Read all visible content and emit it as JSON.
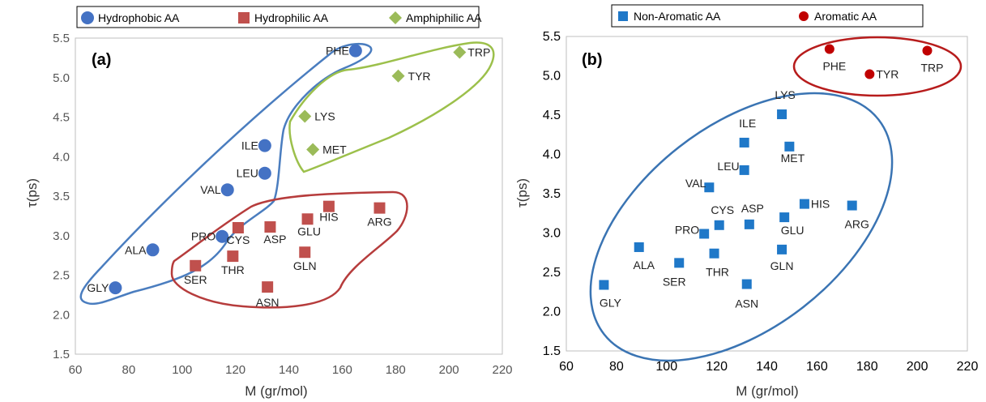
{
  "chart_data": [
    {
      "panel_label": "(a)",
      "type": "scatter",
      "xlabel": "M (gr/mol)",
      "ylabel": "τ(ps)",
      "xlim": [
        60,
        220
      ],
      "ylim": [
        1.5,
        5.5
      ],
      "xticks": [
        "60",
        "80",
        "100",
        "120",
        "140",
        "160",
        "180",
        "200",
        "220"
      ],
      "yticks": [
        "1.5",
        "2.0",
        "2.5",
        "3.0",
        "3.5",
        "4.0",
        "4.5",
        "5.0",
        "5.5"
      ],
      "grid": false,
      "legend_position": "top",
      "series": [
        {
          "name": "Hydrophobic AA",
          "marker": "circle",
          "color": "#4472c4",
          "points": [
            {
              "label": "GLY",
              "x": 75,
              "y": 2.34
            },
            {
              "label": "ALA",
              "x": 89,
              "y": 2.82
            },
            {
              "label": "PRO",
              "x": 115,
              "y": 2.99
            },
            {
              "label": "VAL",
              "x": 117,
              "y": 3.58
            },
            {
              "label": "LEU",
              "x": 131,
              "y": 3.79
            },
            {
              "label": "ILE",
              "x": 131,
              "y": 4.14
            },
            {
              "label": "PHE",
              "x": 165,
              "y": 5.34
            }
          ]
        },
        {
          "name": "Hydrophilic AA",
          "marker": "square",
          "color": "#c0504d",
          "points": [
            {
              "label": "SER",
              "x": 105,
              "y": 2.62
            },
            {
              "label": "THR",
              "x": 119,
              "y": 2.74
            },
            {
              "label": "CYS",
              "x": 121,
              "y": 3.1
            },
            {
              "label": "ASP",
              "x": 133,
              "y": 3.11
            },
            {
              "label": "ASN",
              "x": 132,
              "y": 2.35
            },
            {
              "label": "GLN",
              "x": 146,
              "y": 2.79
            },
            {
              "label": "GLU",
              "x": 147,
              "y": 3.21
            },
            {
              "label": "HIS",
              "x": 155,
              "y": 3.37
            },
            {
              "label": "ARG",
              "x": 174,
              "y": 3.35
            }
          ]
        },
        {
          "name": "Amphiphilic AA",
          "marker": "diamond",
          "color": "#9bbb59",
          "points": [
            {
              "label": "LYS",
              "x": 146,
              "y": 4.51
            },
            {
              "label": "MET",
              "x": 149,
              "y": 4.09
            },
            {
              "label": "TYR",
              "x": 181,
              "y": 5.02
            },
            {
              "label": "TRP",
              "x": 204,
              "y": 5.32
            }
          ]
        }
      ]
    },
    {
      "panel_label": "(b)",
      "type": "scatter",
      "xlabel": "M (gr/mol)",
      "ylabel": "τ(ps)",
      "xlim": [
        60,
        220
      ],
      "ylim": [
        1.5,
        5.5
      ],
      "xticks": [
        "60",
        "80",
        "100",
        "120",
        "140",
        "160",
        "180",
        "200",
        "220"
      ],
      "yticks": [
        "1.5",
        "2.0",
        "2.5",
        "3.0",
        "3.5",
        "4.0",
        "4.5",
        "5.0",
        "5.5"
      ],
      "grid": false,
      "legend_position": "top",
      "series": [
        {
          "name": "Non-Aromatic AA",
          "marker": "square",
          "color": "#1f78c8",
          "points": [
            {
              "label": "GLY",
              "x": 75,
              "y": 2.34
            },
            {
              "label": "ALA",
              "x": 89,
              "y": 2.82
            },
            {
              "label": "SER",
              "x": 105,
              "y": 2.62
            },
            {
              "label": "PRO",
              "x": 115,
              "y": 2.99
            },
            {
              "label": "VAL",
              "x": 117,
              "y": 3.58
            },
            {
              "label": "THR",
              "x": 119,
              "y": 2.74
            },
            {
              "label": "CYS",
              "x": 121,
              "y": 3.1
            },
            {
              "label": "LEU",
              "x": 131,
              "y": 3.8
            },
            {
              "label": "ILE",
              "x": 131,
              "y": 4.15
            },
            {
              "label": "ASN",
              "x": 132,
              "y": 2.35
            },
            {
              "label": "ASP",
              "x": 133,
              "y": 3.11
            },
            {
              "label": "GLN",
              "x": 146,
              "y": 2.79
            },
            {
              "label": "LYS",
              "x": 146,
              "y": 4.51
            },
            {
              "label": "GLU",
              "x": 147,
              "y": 3.2
            },
            {
              "label": "MET",
              "x": 149,
              "y": 4.1
            },
            {
              "label": "HIS",
              "x": 155,
              "y": 3.37
            },
            {
              "label": "ARG",
              "x": 174,
              "y": 3.35
            }
          ]
        },
        {
          "name": "Aromatic AA",
          "marker": "circle",
          "color": "#c00000",
          "points": [
            {
              "label": "PHE",
              "x": 165,
              "y": 5.34
            },
            {
              "label": "TYR",
              "x": 181,
              "y": 5.02
            },
            {
              "label": "TRP",
              "x": 204,
              "y": 5.32
            }
          ]
        }
      ]
    }
  ]
}
